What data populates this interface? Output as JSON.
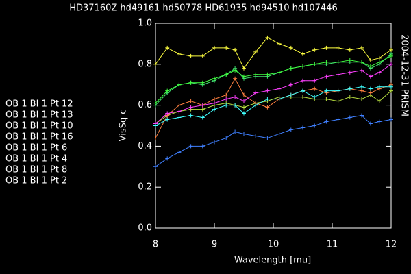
{
  "chart_data": {
    "type": "line",
    "title": "HD37160Z hd49161   hd50778   HD61935   hd94510   hd107446",
    "side_label": "2004-12-31 PRISM",
    "x_label": "Wavelength [mu]",
    "y_label": "VisSq c",
    "x": [
      8.0,
      8.2,
      8.4,
      8.6,
      8.8,
      9.0,
      9.2,
      9.35,
      9.5,
      9.7,
      9.9,
      10.1,
      10.3,
      10.5,
      10.7,
      10.9,
      11.1,
      11.3,
      11.5,
      11.65,
      11.8,
      12.0
    ],
    "xlim": [
      8,
      12
    ],
    "xticks": [
      8,
      9,
      10,
      11,
      12
    ],
    "ylim": [
      0,
      1
    ],
    "yticks": [
      {
        "value": 0,
        "label": "0.0"
      },
      0.2,
      0.4,
      0.6,
      0.8,
      {
        "value": 1,
        "label": "1.0"
      }
    ],
    "series": [
      {
        "name": "OB 1 BI 1 Pt 12",
        "color": "#40e070",
        "values": [
          0.6,
          0.66,
          0.7,
          0.71,
          0.7,
          0.72,
          0.75,
          0.78,
          0.73,
          0.74,
          0.74,
          0.76,
          0.78,
          0.79,
          0.8,
          0.8,
          0.81,
          0.81,
          0.81,
          0.78,
          0.8,
          0.85
        ]
      },
      {
        "name": "OB 1 BI 1 Pt 13",
        "color": "#b8e040",
        "values": [
          0.51,
          0.55,
          0.57,
          0.58,
          0.58,
          0.6,
          0.61,
          0.6,
          0.59,
          0.61,
          0.62,
          0.64,
          0.64,
          0.64,
          0.63,
          0.63,
          0.62,
          0.64,
          0.63,
          0.65,
          0.62,
          0.67
        ]
      },
      {
        "name": "OB 1 BI 1 Pt 10",
        "color": "#ff8040",
        "values": [
          0.44,
          0.55,
          0.6,
          0.62,
          0.6,
          0.63,
          0.65,
          0.73,
          0.65,
          0.61,
          0.59,
          0.63,
          0.65,
          0.67,
          0.68,
          0.66,
          0.67,
          0.68,
          0.67,
          0.66,
          0.68,
          0.7
        ]
      },
      {
        "name": "OB 1 BI 1 Pt 16",
        "color": "#ffff40",
        "values": [
          0.8,
          0.88,
          0.85,
          0.84,
          0.84,
          0.88,
          0.88,
          0.87,
          0.78,
          0.86,
          0.93,
          0.9,
          0.88,
          0.85,
          0.87,
          0.88,
          0.88,
          0.87,
          0.88,
          0.82,
          0.83,
          0.87
        ]
      },
      {
        "name": "OB 1 BI 1 Pt 6",
        "color": "#ff40ff",
        "values": [
          0.51,
          0.56,
          0.57,
          0.59,
          0.6,
          0.61,
          0.63,
          0.64,
          0.62,
          0.66,
          0.67,
          0.68,
          0.7,
          0.72,
          0.72,
          0.74,
          0.75,
          0.76,
          0.77,
          0.74,
          0.76,
          0.8
        ]
      },
      {
        "name": "OB 1 BI 1 Pt 4",
        "color": "#40ffff",
        "values": [
          0.5,
          0.53,
          0.54,
          0.55,
          0.54,
          0.58,
          0.6,
          0.6,
          0.56,
          0.6,
          0.63,
          0.63,
          0.65,
          0.67,
          0.64,
          0.67,
          0.67,
          0.68,
          0.69,
          0.68,
          0.69,
          0.69
        ]
      },
      {
        "name": "OB 1 BI 1 Pt 8",
        "color": "#4080ff",
        "values": [
          0.3,
          0.34,
          0.37,
          0.4,
          0.4,
          0.42,
          0.44,
          0.47,
          0.46,
          0.45,
          0.44,
          0.46,
          0.48,
          0.49,
          0.5,
          0.52,
          0.53,
          0.54,
          0.55,
          0.51,
          0.52,
          0.53
        ]
      },
      {
        "name": "OB 1 BI 1 Pt 2",
        "color": "#40ff40",
        "values": [
          0.61,
          0.67,
          0.7,
          0.71,
          0.71,
          0.73,
          0.75,
          0.77,
          0.74,
          0.75,
          0.75,
          0.76,
          0.78,
          0.79,
          0.8,
          0.81,
          0.81,
          0.82,
          0.81,
          0.79,
          0.81,
          0.84
        ]
      }
    ]
  }
}
